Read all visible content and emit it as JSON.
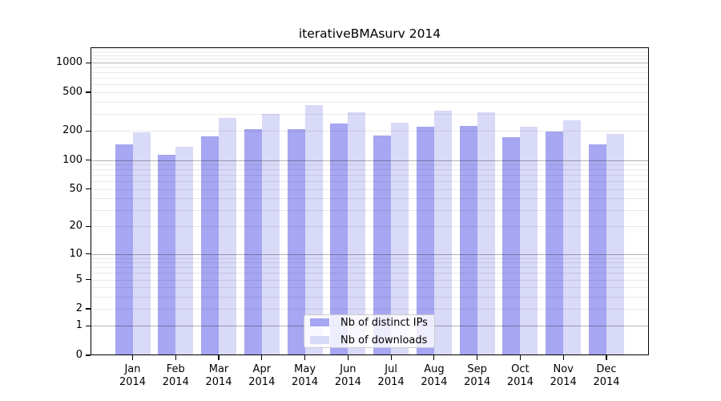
{
  "chart_data": {
    "type": "bar",
    "title": "iterativeBMAsurv 2014",
    "categories": [
      "Jan 2014",
      "Feb 2014",
      "Mar 2014",
      "Apr 2014",
      "May 2014",
      "Jun 2014",
      "Jul 2014",
      "Aug 2014",
      "Sep 2014",
      "Oct 2014",
      "Nov 2014",
      "Dec 2014"
    ],
    "x_axis": {
      "months": [
        "Jan",
        "Feb",
        "Mar",
        "Apr",
        "May",
        "Jun",
        "Jul",
        "Aug",
        "Sep",
        "Oct",
        "Nov",
        "Dec"
      ],
      "year": "2014"
    },
    "series": [
      {
        "name": "Nb of distinct IPs",
        "color": "#a6a6f2",
        "values": [
          145,
          113,
          175,
          207,
          210,
          240,
          178,
          222,
          225,
          172,
          198,
          146
        ]
      },
      {
        "name": "Nb of downloads",
        "color": "#d9d9f8",
        "values": [
          195,
          138,
          270,
          300,
          370,
          310,
          245,
          325,
          310,
          222,
          255,
          187
        ]
      }
    ],
    "y_axis": {
      "scale": "log10(value+1)",
      "tick_values": [
        0,
        1,
        2,
        5,
        10,
        20,
        50,
        100,
        200,
        500,
        1000
      ],
      "tick_labels": [
        "0",
        "1",
        "2",
        "5",
        "10",
        "20",
        "50",
        "100",
        "200",
        "500",
        "1000"
      ],
      "ylim": [
        0,
        1475
      ]
    },
    "grid": true,
    "legend": {
      "position": "lower center inside",
      "entries": [
        "Nb of distinct IPs",
        "Nb of downloads"
      ]
    }
  }
}
